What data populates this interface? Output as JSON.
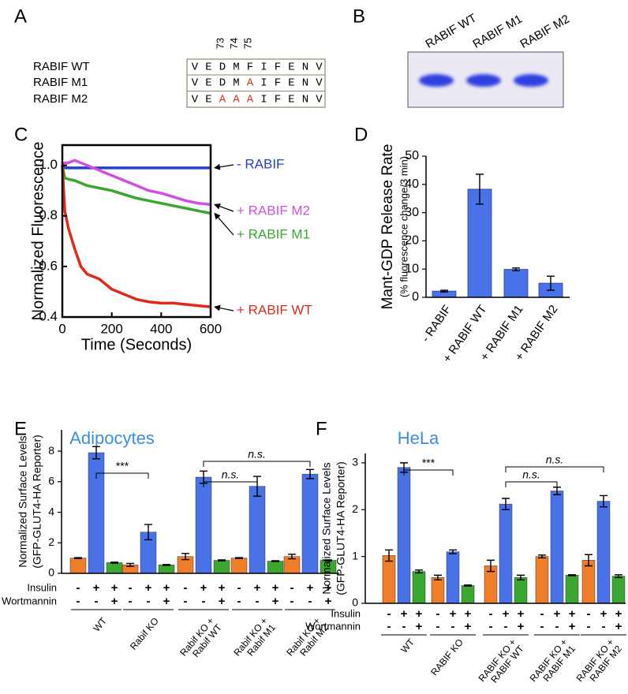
{
  "panel_labels": [
    "A",
    "B",
    "C",
    "D",
    "E",
    "F"
  ],
  "alignment": {
    "position_labels": [
      null,
      null,
      73,
      74,
      75,
      null,
      null,
      null,
      null,
      null
    ],
    "highlight_color": "#e0301e",
    "rows": [
      {
        "name": "RABIF WT",
        "residues": [
          "V",
          "E",
          "D",
          "M",
          "F",
          "I",
          "F",
          "E",
          "N",
          "V"
        ]
      },
      {
        "name": "RABIF M1",
        "residues": [
          "V",
          "E",
          "D",
          "M",
          "A",
          "I",
          "F",
          "E",
          "N",
          "V"
        ],
        "mutated": [
          4
        ]
      },
      {
        "name": "RABIF M2",
        "residues": [
          "V",
          "E",
          "A",
          "A",
          "A",
          "I",
          "F",
          "E",
          "N",
          "V"
        ],
        "mutated": [
          2,
          3,
          4
        ]
      }
    ]
  },
  "gel": {
    "lanes": [
      "RABIF WT",
      "RABIF M1",
      "RABIF M2"
    ]
  },
  "chart_data": [
    {
      "type": "line",
      "xlabel": "Time (Seconds)",
      "ylabel": "Normalized Fluorescence",
      "x": [
        0,
        10,
        25,
        50,
        75,
        100,
        150,
        200,
        250,
        300,
        350,
        400,
        450,
        500,
        550,
        600
      ],
      "xlim": [
        0,
        600
      ],
      "xticks": [
        0,
        200,
        400,
        600
      ],
      "ylim": [
        0.4,
        1.08
      ],
      "yticks": [
        0.4,
        0.6,
        0.8,
        {
          "value": 1,
          "label": "1.0"
        }
      ],
      "series": [
        {
          "name": "- RABIF",
          "color": "#2440d4",
          "values": [
            1.0,
            0.99,
            0.99,
            0.99,
            0.99,
            0.99,
            0.99,
            0.99,
            0.99,
            0.99,
            0.99,
            0.99,
            0.99,
            0.99,
            0.99,
            0.99
          ]
        },
        {
          "name": "+ RABIF M2",
          "color": "#d050e0",
          "values": [
            1.0,
            1.01,
            1.01,
            1.02,
            1.01,
            1.0,
            0.98,
            0.96,
            0.94,
            0.92,
            0.9,
            0.89,
            0.875,
            0.86,
            0.85,
            0.845
          ]
        },
        {
          "name": "+ RABIF M1",
          "color": "#3aa830",
          "values": [
            1.0,
            0.95,
            0.945,
            0.94,
            0.93,
            0.92,
            0.91,
            0.9,
            0.885,
            0.87,
            0.86,
            0.85,
            0.84,
            0.83,
            0.82,
            0.81
          ]
        },
        {
          "name": "+ RABIF WT",
          "color": "#e02a1a",
          "values": [
            1.0,
            0.82,
            0.75,
            0.67,
            0.6,
            0.57,
            0.55,
            0.51,
            0.49,
            0.47,
            0.46,
            0.455,
            0.455,
            0.45,
            0.445,
            0.44
          ]
        }
      ]
    },
    {
      "type": "bar",
      "ylabel": "Mant-GDP Release Rate",
      "ylabel_sub": "(% fluorescence change/3 min)",
      "categories": [
        "- RABIF",
        "+ RABIF WT",
        "+ RABIF M1",
        "+ RABIF M2"
      ],
      "values": [
        2.2,
        38.3,
        9.9,
        5.0
      ],
      "errors": [
        0.3,
        5.3,
        0.5,
        2.5
      ],
      "color": "#4a72e8",
      "ylim": [
        0,
        50
      ],
      "yticks": [
        0,
        10,
        20,
        30,
        40,
        50
      ]
    },
    {
      "type": "grouped_bar",
      "title": "Adipocytes",
      "ylabel": "Normalized Surface Levels",
      "ylabel_sub": "(GFP-GLUT4-HA Reporter)",
      "categories": [
        "WT",
        "Rabif KO",
        "Rabif KO + Rabif WT",
        "Rabif KO + Rabif M1",
        "Rabif KO + Rabif M2"
      ],
      "series": [
        {
          "color": "#f07d27",
          "values": [
            1.0,
            0.55,
            1.1,
            1.0,
            1.1
          ],
          "errors": [
            0.03,
            0.1,
            0.2,
            0.03,
            0.15
          ]
        },
        {
          "color": "#4a72e8",
          "values": [
            7.9,
            2.7,
            6.3,
            5.7,
            6.5
          ],
          "errors": [
            0.4,
            0.5,
            0.4,
            0.65,
            0.3
          ]
        },
        {
          "color": "#3aa830",
          "values": [
            0.7,
            0.55,
            0.85,
            0.8,
            0.85
          ],
          "errors": [
            0.03,
            0.03,
            0.03,
            0.03,
            0.03
          ]
        }
      ],
      "ylim": [
        0,
        9.4
      ],
      "yticks": [
        0,
        2,
        4,
        6,
        8
      ],
      "conditions": [
        {
          "name": "Insulin",
          "signs": [
            "-",
            "+",
            "+"
          ]
        },
        {
          "name": "Wortmannin",
          "signs": [
            "-",
            "-",
            "+"
          ]
        }
      ],
      "annotations": [
        {
          "label": "***",
          "from": 0,
          "to": 1
        },
        {
          "label": "n.s.",
          "from": 2,
          "to": 3
        },
        {
          "label": "n.s.",
          "from": 2,
          "to": 4
        }
      ]
    },
    {
      "type": "grouped_bar",
      "title": "HeLa",
      "ylabel": "Normalized Surface Levels",
      "ylabel_sub": "(GFP-GLUT4-HA Reporter)",
      "categories": [
        "WT",
        "RABIF KO",
        "RABIF KO + RABIF WT",
        "RABIF KO + RABIF M1",
        "RABIF KO + RABIF M2"
      ],
      "series": [
        {
          "color": "#f07d27",
          "values": [
            1.02,
            0.55,
            0.8,
            1.0,
            0.92
          ],
          "errors": [
            0.12,
            0.05,
            0.12,
            0.03,
            0.12
          ]
        },
        {
          "color": "#4a72e8",
          "values": [
            2.9,
            1.1,
            2.12,
            2.4,
            2.18
          ],
          "errors": [
            0.1,
            0.04,
            0.12,
            0.08,
            0.12
          ]
        },
        {
          "color": "#3aa830",
          "values": [
            0.68,
            0.38,
            0.55,
            0.6,
            0.58
          ],
          "errors": [
            0.03,
            0.01,
            0.05,
            0.01,
            0.03
          ]
        }
      ],
      "ylim": [
        0,
        3.2
      ],
      "yticks": [
        0,
        1,
        2,
        3
      ],
      "conditions": [
        {
          "name": "Insulin",
          "signs": [
            "-",
            "+",
            "+"
          ]
        },
        {
          "name": "Wortmannin",
          "signs": [
            "-",
            "-",
            "+"
          ]
        }
      ],
      "annotations": [
        {
          "label": "***",
          "from": 0,
          "to": 1
        },
        {
          "label": "n.s.",
          "from": 2,
          "to": 3
        },
        {
          "label": "n.s.",
          "from": 2,
          "to": 4
        }
      ]
    }
  ]
}
